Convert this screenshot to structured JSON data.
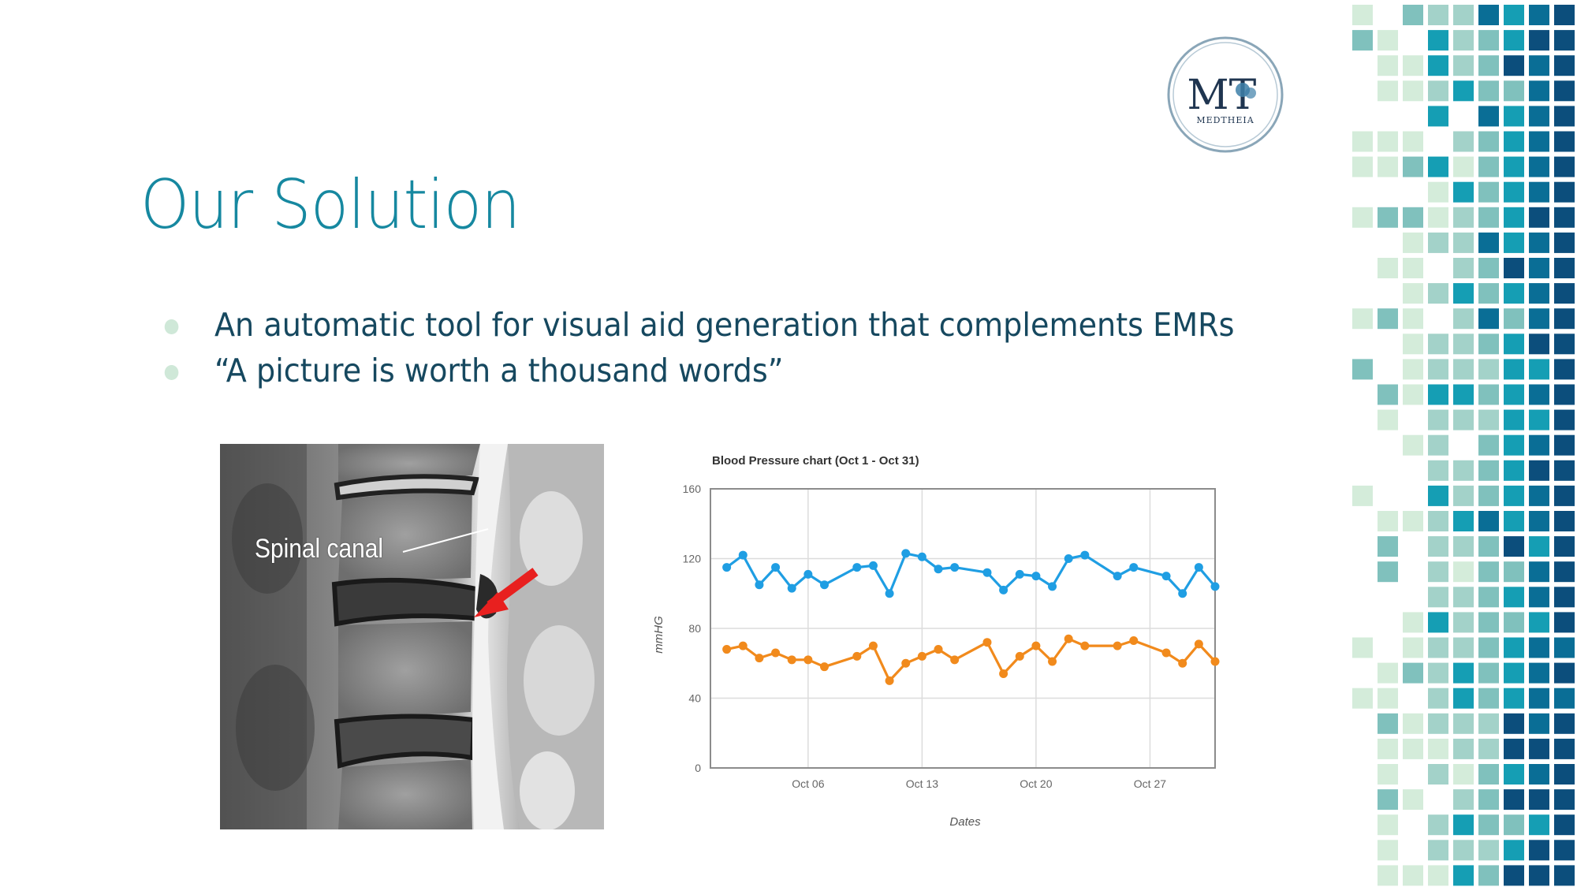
{
  "slide": {
    "title": "Our Solution",
    "bullets": [
      "An automatic tool for visual aid generation that complements EMRs",
      "“A picture is worth a thousand words”"
    ]
  },
  "logo": {
    "monogram": "MT",
    "wordmark": "MEDTHEIA"
  },
  "mri": {
    "label": "Spinal canal"
  },
  "colors": {
    "title": "#1688a0",
    "text": "#16485f",
    "bullet": "#cfe8d8",
    "series_1": "#1f9ee3",
    "series_2": "#f18a1c",
    "arrow": "#e8201f"
  },
  "chart_data": {
    "type": "line",
    "title": "Blood Pressure chart (Oct 1 - Oct 31)",
    "xlabel": "Dates",
    "ylabel": "mmHG",
    "ylim": [
      0,
      160
    ],
    "yticks": [
      0,
      40,
      80,
      120,
      160
    ],
    "xlim": [
      "Sep 30",
      "Oct 31"
    ],
    "xticks": [
      "Oct 06",
      "Oct 13",
      "Oct 20",
      "Oct 27"
    ],
    "grid": true,
    "series": [
      {
        "color": "#1f9ee3",
        "x": [
          "Oct 01",
          "Oct 02",
          "Oct 03",
          "Oct 04",
          "Oct 05",
          "Oct 06",
          "Oct 07",
          "Oct 09",
          "Oct 10",
          "Oct 11",
          "Oct 12",
          "Oct 13",
          "Oct 14",
          "Oct 15",
          "Oct 17",
          "Oct 18",
          "Oct 19",
          "Oct 20",
          "Oct 21",
          "Oct 22",
          "Oct 23",
          "Oct 25",
          "Oct 26",
          "Oct 28",
          "Oct 29",
          "Oct 30",
          "Oct 31"
        ],
        "y": [
          115,
          122,
          105,
          115,
          103,
          111,
          105,
          115,
          116,
          100,
          123,
          121,
          114,
          115,
          112,
          102,
          111,
          110,
          104,
          120,
          122,
          110,
          115,
          110,
          100,
          115,
          104
        ]
      },
      {
        "color": "#f18a1c",
        "x": [
          "Oct 01",
          "Oct 02",
          "Oct 03",
          "Oct 04",
          "Oct 05",
          "Oct 06",
          "Oct 07",
          "Oct 09",
          "Oct 10",
          "Oct 11",
          "Oct 12",
          "Oct 13",
          "Oct 14",
          "Oct 15",
          "Oct 17",
          "Oct 18",
          "Oct 19",
          "Oct 20",
          "Oct 21",
          "Oct 22",
          "Oct 23",
          "Oct 25",
          "Oct 26",
          "Oct 28",
          "Oct 29",
          "Oct 30",
          "Oct 31"
        ],
        "y": [
          68,
          70,
          63,
          66,
          62,
          62,
          58,
          64,
          70,
          50,
          60,
          64,
          68,
          62,
          72,
          54,
          64,
          70,
          61,
          74,
          70,
          70,
          73,
          66,
          60,
          71,
          61
        ]
      }
    ]
  }
}
